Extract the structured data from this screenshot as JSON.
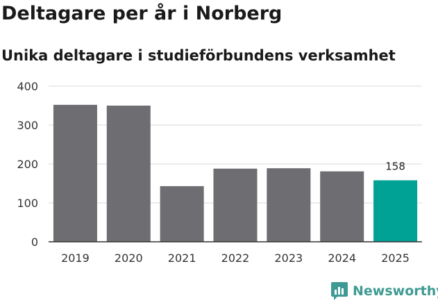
{
  "header": {
    "title": "Deltagare per år i Norberg",
    "subtitle": "Unika deltagare i studieförbundens verksamhet"
  },
  "chart_data": {
    "type": "bar",
    "categories": [
      "2019",
      "2020",
      "2021",
      "2022",
      "2023",
      "2024",
      "2025"
    ],
    "values": [
      352,
      350,
      143,
      188,
      189,
      181,
      158
    ],
    "data_labels": [
      "",
      "",
      "",
      "",
      "",
      "",
      "158"
    ],
    "title": "Deltagare per år i Norberg",
    "subtitle": "Unika deltagare i studieförbundens verksamhet",
    "xlabel": "",
    "ylabel": "",
    "ylim": [
      0,
      400
    ],
    "yticks": [
      0,
      100,
      200,
      300,
      400
    ],
    "grid": true,
    "bar_color": "#6e6d72",
    "highlight_color": "#00a296",
    "highlight_index": 6
  },
  "brand": {
    "name": "Newsworthy",
    "logo_icon": "newsworthy-logo-icon",
    "color": "#3f9a93"
  }
}
